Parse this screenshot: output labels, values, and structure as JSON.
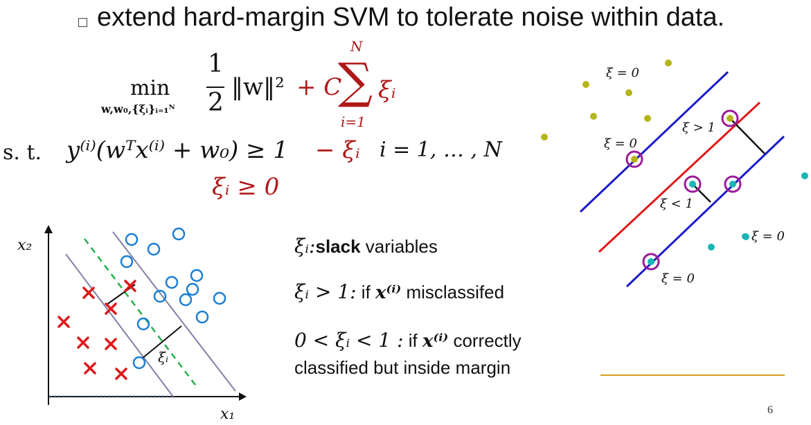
{
  "bullet": "extend hard-margin SVM to tolerate noise within data.",
  "objective": {
    "min_label": "min",
    "subscript": "w,w₀,{ξᵢ}ᵢ₌₁ᴺ",
    "half": "1",
    "half_den": "2",
    "norm": "‖w‖²",
    "plus_c": "+ C",
    "sum": "∑",
    "sum_top": "N",
    "sum_bottom": "i=1",
    "xi": "ξᵢ"
  },
  "constraint": {
    "st": "s. t.",
    "lhs": "y⁽ⁱ⁾(wᵀx⁽ⁱ⁾ + w₀) ≥ 1",
    "minus_xi": "− ξᵢ",
    "range": "i = 1, … , N",
    "nonneg": "ξᵢ ≥ 0"
  },
  "left_plot": {
    "xlabel": "x₁",
    "ylabel": "x₂",
    "slack_label": "ξᵢ"
  },
  "notes": {
    "line1_sym": "ξᵢ:",
    "line1_bold": "slack",
    "line1_rest": " variables",
    "line2_sym": "ξᵢ > 1:",
    "line2_rest": " if ",
    "line2_x": "x⁽ⁱ⁾",
    "line2_end": " misclassifed",
    "line3_sym": "0 < ξᵢ < 1 :",
    "line3_rest": "  if ",
    "line3_x": "x⁽ⁱ⁾",
    "line3_end": "   correctly",
    "line4": "classified but inside margin"
  },
  "right_plot": {
    "labels": [
      "ξ = 0",
      "ξ = 0",
      "ξ > 1",
      "ξ < 1",
      "ξ = 0",
      "ξ = 0"
    ]
  },
  "page_number": "6",
  "colors": {
    "red": "#b01818",
    "blue_line": "#1a1acc",
    "red_line": "#e01818",
    "olive": "#b5b51a",
    "teal": "#1ab5b5",
    "purple": "#9a1a9a",
    "circle_blue": "#1a7fd4",
    "cross_red": "#e01818",
    "rule": "#d4a020"
  }
}
